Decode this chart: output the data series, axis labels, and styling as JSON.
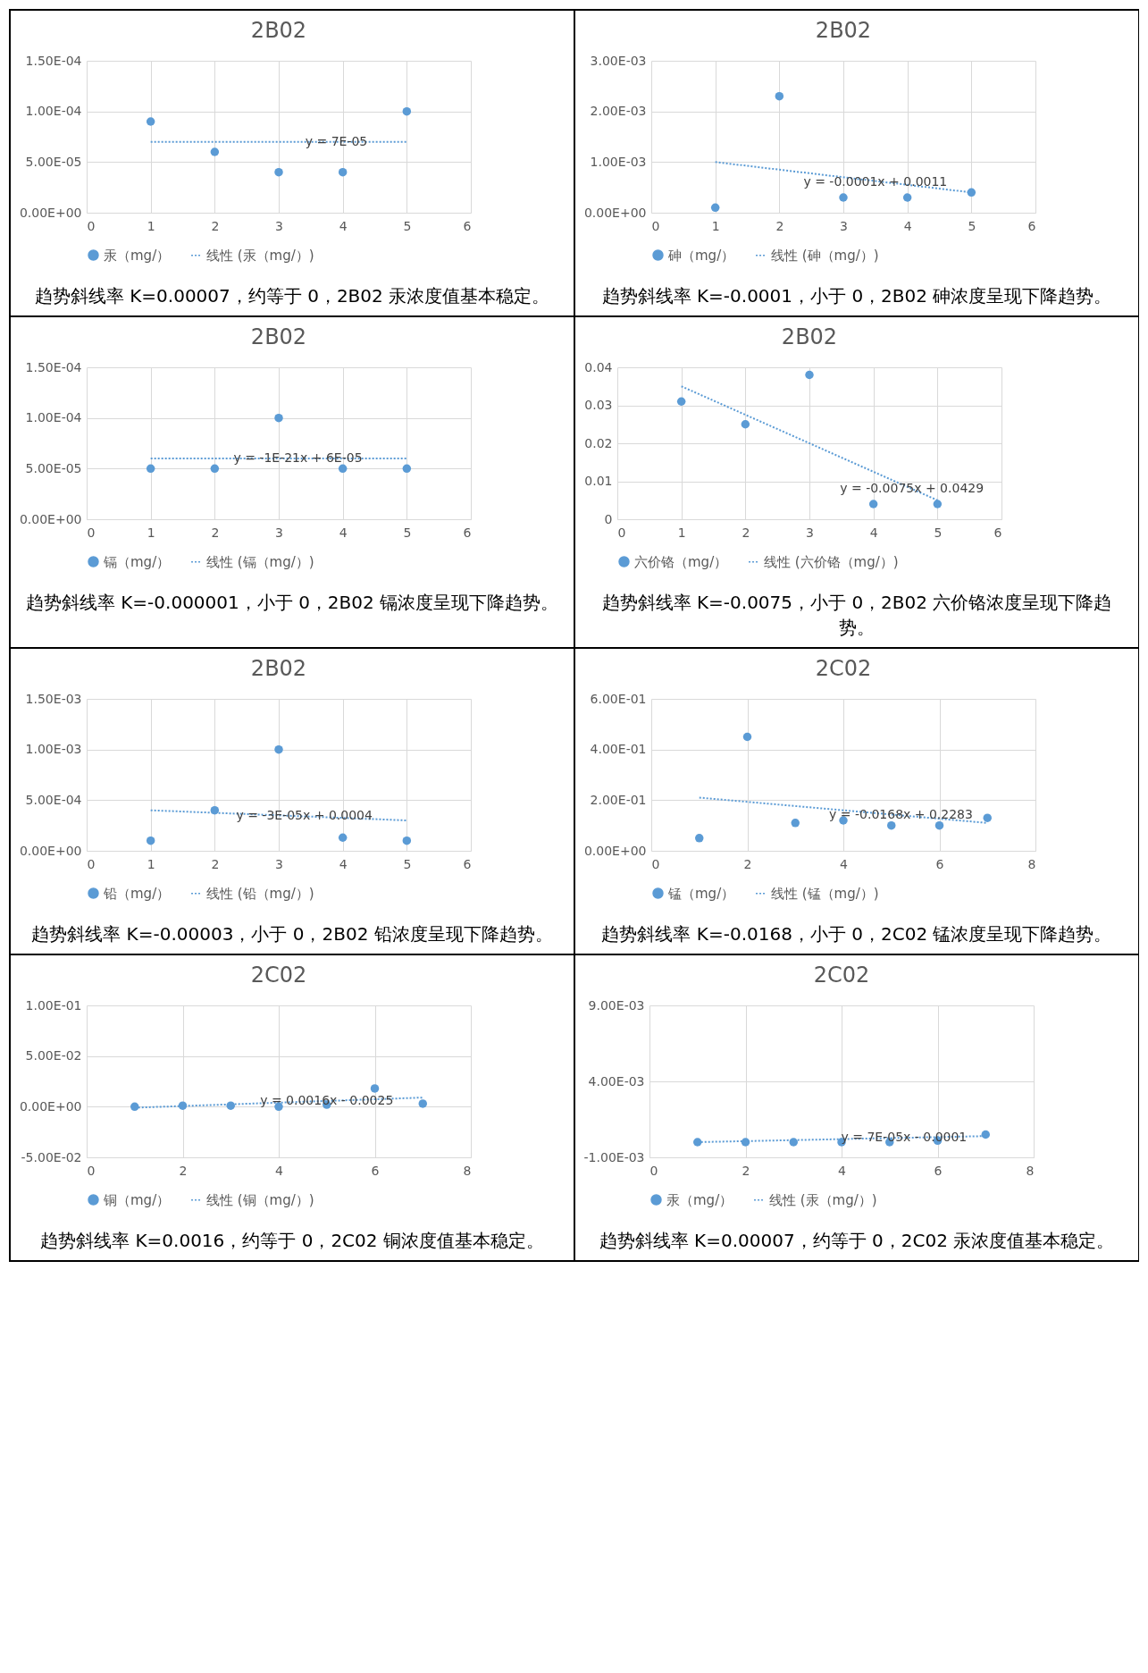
{
  "chart_data": [
    {
      "type": "scatter",
      "title": "2B02",
      "xlim": [
        0,
        6
      ],
      "xticks": [
        0,
        1,
        2,
        3,
        4,
        5,
        6
      ],
      "ylim": [
        0,
        0.00015
      ],
      "yticks": [
        {
          "value": 0,
          "label": "0.00E+00"
        },
        {
          "value": 5e-05,
          "label": "5.00E-05"
        },
        {
          "value": 0.0001,
          "label": "1.00E-04"
        },
        {
          "value": 0.00015,
          "label": "1.50E-04"
        }
      ],
      "grid": true,
      "legend": "bottom",
      "marker": "circle",
      "series": [
        {
          "name": "汞（mg/）",
          "color": "#5b9bd5",
          "x": [
            1,
            2,
            3,
            4,
            5
          ],
          "values": [
            9e-05,
            6e-05,
            4e-05,
            4e-05,
            0.0001
          ]
        },
        {
          "name": "线性 (汞（mg/）)",
          "type": "line",
          "marker": "none",
          "line_style": "dotted",
          "color": "#5b9bd5",
          "x": [
            1,
            5
          ],
          "values": [
            7e-05,
            7e-05
          ]
        }
      ],
      "annotations": [
        {
          "text": "y = 7E-05",
          "x": 3.9,
          "y": 7e-05
        },
        "趋势斜线率 K=0.00007，约等于 0，2B02 汞浓度值基本稳定。"
      ]
    },
    {
      "type": "scatter",
      "title": "2B02",
      "xlim": [
        0,
        6
      ],
      "xticks": [
        0,
        1,
        2,
        3,
        4,
        5,
        6
      ],
      "ylim": [
        0,
        0.003
      ],
      "yticks": [
        {
          "value": 0,
          "label": "0.00E+00"
        },
        {
          "value": 0.001,
          "label": "1.00E-03"
        },
        {
          "value": 0.002,
          "label": "2.00E-03"
        },
        {
          "value": 0.003,
          "label": "3.00E-03"
        }
      ],
      "grid": true,
      "legend": "bottom",
      "marker": "circle",
      "series": [
        {
          "name": "砷（mg/）",
          "color": "#5b9bd5",
          "x": [
            1,
            2,
            3,
            4,
            5
          ],
          "values": [
            0.0001,
            0.0023,
            0.0003,
            0.0003,
            0.0004
          ]
        },
        {
          "name": "线性 (砷（mg/）)",
          "type": "line",
          "marker": "none",
          "line_style": "dotted",
          "color": "#5b9bd5",
          "x": [
            1,
            5
          ],
          "values": [
            0.001,
            0.0004
          ]
        }
      ],
      "annotations": [
        {
          "text": "y = -0.0001x + 0.0011",
          "x": 3.5,
          "y": 0.0006
        },
        "趋势斜线率 K=-0.0001，小于 0，2B02 砷浓度呈现下降趋势。"
      ]
    },
    {
      "type": "scatter",
      "title": "2B02",
      "xlim": [
        0,
        6
      ],
      "xticks": [
        0,
        1,
        2,
        3,
        4,
        5,
        6
      ],
      "ylim": [
        0,
        0.00015
      ],
      "yticks": [
        {
          "value": 0,
          "label": "0.00E+00"
        },
        {
          "value": 5e-05,
          "label": "5.00E-05"
        },
        {
          "value": 0.0001,
          "label": "1.00E-04"
        },
        {
          "value": 0.00015,
          "label": "1.50E-04"
        }
      ],
      "grid": true,
      "legend": "bottom",
      "marker": "circle",
      "series": [
        {
          "name": "镉（mg/）",
          "color": "#5b9bd5",
          "x": [
            1,
            2,
            3,
            4,
            5
          ],
          "values": [
            5e-05,
            5e-05,
            0.0001,
            5e-05,
            5e-05
          ]
        },
        {
          "name": "线性 (镉（mg/）)",
          "type": "line",
          "marker": "none",
          "line_style": "dotted",
          "color": "#5b9bd5",
          "x": [
            1,
            5
          ],
          "values": [
            6e-05,
            6e-05
          ]
        }
      ],
      "annotations": [
        {
          "text": "y = -1E-21x + 6E-05",
          "x": 3.3,
          "y": 6e-05
        },
        "趋势斜线率 K=-0.000001，小于 0，2B02 镉浓度呈现下降趋势。"
      ]
    },
    {
      "type": "scatter",
      "title": "2B02",
      "xlim": [
        0,
        6
      ],
      "xticks": [
        0,
        1,
        2,
        3,
        4,
        5,
        6
      ],
      "ylim": [
        0,
        0.04
      ],
      "yticks": [
        0,
        0.01,
        0.02,
        0.03,
        0.04
      ],
      "grid": true,
      "legend": "bottom",
      "marker": "circle",
      "series": [
        {
          "name": "六价铬（mg/）",
          "color": "#5b9bd5",
          "x": [
            1,
            2,
            3,
            4,
            5
          ],
          "values": [
            0.031,
            0.025,
            0.038,
            0.004,
            0.004
          ]
        },
        {
          "name": "线性 (六价铬（mg/）)",
          "type": "line",
          "marker": "none",
          "line_style": "dotted",
          "color": "#5b9bd5",
          "x": [
            1,
            5
          ],
          "values": [
            0.035,
            0.005
          ]
        }
      ],
      "annotations": [
        {
          "text": "y = -0.0075x + 0.0429",
          "x": 4.6,
          "y": 0.008
        },
        "趋势斜线率 K=-0.0075，小于 0，2B02 六价铬浓度呈现下降趋势。"
      ]
    },
    {
      "type": "scatter",
      "title": "2B02",
      "xlim": [
        0,
        6
      ],
      "xticks": [
        0,
        1,
        2,
        3,
        4,
        5,
        6
      ],
      "ylim": [
        0,
        0.0015
      ],
      "yticks": [
        {
          "value": 0,
          "label": "0.00E+00"
        },
        {
          "value": 0.0005,
          "label": "5.00E-04"
        },
        {
          "value": 0.001,
          "label": "1.00E-03"
        },
        {
          "value": 0.0015,
          "label": "1.50E-03"
        }
      ],
      "grid": true,
      "legend": "bottom",
      "marker": "circle",
      "series": [
        {
          "name": "铅（mg/）",
          "color": "#5b9bd5",
          "x": [
            1,
            2,
            3,
            4,
            5
          ],
          "values": [
            0.0001,
            0.0004,
            0.001,
            0.00013,
            0.0001
          ]
        },
        {
          "name": "线性 (铅（mg/）)",
          "type": "line",
          "marker": "none",
          "line_style": "dotted",
          "color": "#5b9bd5",
          "x": [
            1,
            5
          ],
          "values": [
            0.0004,
            0.0003
          ]
        }
      ],
      "annotations": [
        {
          "text": "y = -3E-05x + 0.0004",
          "x": 3.4,
          "y": 0.00034
        },
        "趋势斜线率 K=-0.00003，小于 0，2B02 铅浓度呈现下降趋势。"
      ]
    },
    {
      "type": "scatter",
      "title": "2C02",
      "xlim": [
        0,
        8
      ],
      "xticks": [
        0,
        2,
        4,
        6,
        8
      ],
      "ylim": [
        0,
        0.6
      ],
      "yticks": [
        {
          "value": 0,
          "label": "0.00E+00"
        },
        {
          "value": 0.2,
          "label": "2.00E-01"
        },
        {
          "value": 0.4,
          "label": "4.00E-01"
        },
        {
          "value": 0.6,
          "label": "6.00E-01"
        }
      ],
      "grid": true,
      "legend": "bottom",
      "marker": "circle",
      "series": [
        {
          "name": "锰（mg/）",
          "color": "#5b9bd5",
          "x": [
            1,
            2,
            3,
            4,
            5,
            6,
            7
          ],
          "values": [
            0.05,
            0.45,
            0.11,
            0.12,
            0.1,
            0.1,
            0.13
          ]
        },
        {
          "name": "线性 (锰（mg/）)",
          "type": "line",
          "marker": "none",
          "line_style": "dotted",
          "color": "#5b9bd5",
          "x": [
            1,
            7
          ],
          "values": [
            0.21,
            0.11
          ]
        }
      ],
      "annotations": [
        {
          "text": "y = -0.0168x + 0.2283",
          "x": 5.2,
          "y": 0.14
        },
        "趋势斜线率 K=-0.0168，小于 0，2C02 锰浓度呈现下降趋势。"
      ]
    },
    {
      "type": "scatter",
      "title": "2C02",
      "xlim": [
        0,
        8
      ],
      "xticks": [
        0,
        2,
        4,
        6,
        8
      ],
      "ylim": [
        -0.05,
        0.1
      ],
      "yticks": [
        {
          "value": -0.05,
          "label": "-5.00E-02"
        },
        {
          "value": 0,
          "label": "0.00E+00"
        },
        {
          "value": 0.05,
          "label": "5.00E-02"
        },
        {
          "value": 0.1,
          "label": "1.00E-01"
        }
      ],
      "grid": true,
      "legend": "bottom",
      "marker": "circle",
      "series": [
        {
          "name": "铜（mg/）",
          "color": "#5b9bd5",
          "x": [
            1,
            2,
            3,
            4,
            5,
            6,
            7
          ],
          "values": [
            0,
            0.001,
            0.001,
            0,
            0.002,
            0.018,
            0.003
          ]
        },
        {
          "name": "线性 (铜（mg/）)",
          "type": "line",
          "marker": "none",
          "line_style": "dotted",
          "color": "#5b9bd5",
          "x": [
            1,
            7
          ],
          "values": [
            -0.001,
            0.009
          ]
        }
      ],
      "annotations": [
        {
          "text": "y = 0.0016x - 0.0025",
          "x": 5.0,
          "y": 0.006
        },
        "趋势斜线率 K=0.0016，约等于 0，2C02 铜浓度值基本稳定。"
      ]
    },
    {
      "type": "scatter",
      "title": "2C02",
      "xlim": [
        0,
        8
      ],
      "xticks": [
        0,
        2,
        4,
        6,
        8
      ],
      "ylim": [
        -0.001,
        0.009
      ],
      "yticks": [
        {
          "value": -0.001,
          "label": "-1.00E-03"
        },
        {
          "value": 0.004,
          "label": "4.00E-03"
        },
        {
          "value": 0.009,
          "label": "9.00E-03"
        }
      ],
      "grid": true,
      "legend": "bottom",
      "marker": "circle",
      "series": [
        {
          "name": "汞（mg/）",
          "color": "#5b9bd5",
          "x": [
            1,
            2,
            3,
            4,
            5,
            6,
            7
          ],
          "values": [
            0,
            0,
            0,
            0,
            0,
            0.0001,
            0.0005
          ]
        },
        {
          "name": "线性 (汞（mg/）)",
          "type": "line",
          "marker": "none",
          "line_style": "dotted",
          "color": "#5b9bd5",
          "x": [
            1,
            7
          ],
          "values": [
            0,
            0.0004
          ]
        }
      ],
      "annotations": [
        {
          "text": "y = 7E-05x - 0.0001",
          "x": 5.3,
          "y": 0.0003
        },
        "趋势斜线率 K=0.00007，约等于 0，2C02 汞浓度值基本稳定。"
      ]
    }
  ]
}
